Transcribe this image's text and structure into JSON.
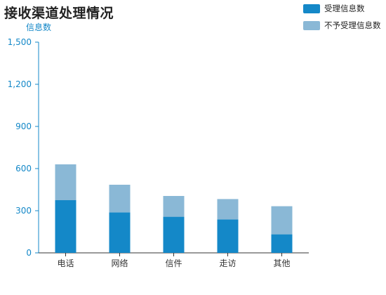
{
  "chart_data": {
    "type": "bar",
    "stacked": true,
    "title": "接收渠道处理情况",
    "ylabel": "信息数",
    "xlabel": "",
    "categories": [
      "电话",
      "网络",
      "信件",
      "走访",
      "其他"
    ],
    "series": [
      {
        "name": "受理信息数",
        "color": "#1488c8",
        "values": [
          375,
          288,
          257,
          238,
          132
        ]
      },
      {
        "name": "不予受理信息数",
        "color": "#8ab8d6",
        "values": [
          255,
          197,
          148,
          145,
          200
        ]
      }
    ],
    "ylim": [
      0,
      1500
    ],
    "yticks": [
      0,
      300,
      600,
      900,
      1200,
      1500
    ],
    "ytick_labels": [
      "0",
      "300",
      "600",
      "900",
      "1,200",
      "1,500"
    ],
    "grid": false,
    "legend_position": "top-right",
    "axis_color": "#1488c8"
  }
}
